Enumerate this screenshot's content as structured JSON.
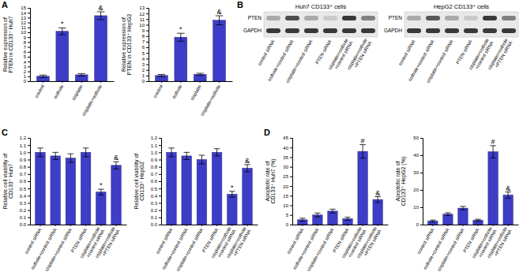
{
  "chart_data": [
    {
      "type": "bar",
      "ylabel": "Relative expression of\nPTEN in CD133⁺ Huh7",
      "categories": [
        "control",
        "osthole",
        "cisplatin",
        "cisplatin+osthole"
      ],
      "values": [
        1,
        10.2,
        1.3,
        13.4
      ],
      "errors": [
        0.25,
        0.7,
        0.25,
        0.8
      ],
      "annotations": [
        null,
        "*",
        null,
        "&"
      ],
      "color": "#3d3dc8",
      "ylim": [
        0,
        15
      ],
      "yticks": [
        0,
        1,
        2,
        3,
        4,
        5,
        6,
        7,
        8,
        9,
        10,
        11,
        12,
        13,
        14,
        15
      ]
    },
    {
      "type": "bar",
      "ylabel": "Relative expression of\nPTEN in CD133⁺ HepG2",
      "categories": [
        "control",
        "osthole",
        "cisplatin",
        "cisplatin+osthole"
      ],
      "values": [
        1,
        7.8,
        1.2,
        10.8
      ],
      "errors": [
        0.2,
        0.7,
        0.2,
        0.8
      ],
      "annotations": [
        null,
        "*",
        null,
        "&"
      ],
      "color": "#3d3dc8",
      "ylim": [
        0,
        13
      ],
      "yticks": [
        0,
        1,
        2,
        3,
        4,
        5,
        6,
        7,
        8,
        9,
        10,
        11,
        12,
        13
      ]
    },
    {
      "type": "bar",
      "ylabel": "Relative cell viability of\nCD133⁺ Huh7",
      "categories": [
        "control siRNA",
        "osthole+control siRNA",
        "cisplatin+control siRNA",
        "PTEN siRNA",
        "cisplatin+osthole\n+control siRNA",
        "cisplatin+osthole\n+PTEN siRNA"
      ],
      "values": [
        1.0,
        0.95,
        0.92,
        1.0,
        0.45,
        0.82
      ],
      "errors": [
        0.06,
        0.05,
        0.06,
        0.06,
        0.04,
        0.05
      ],
      "annotations": [
        null,
        null,
        null,
        null,
        "*",
        "&"
      ],
      "color": "#3d3dc8",
      "ylim": [
        0,
        1.2
      ],
      "yticks": [
        {
          "value": 0,
          "label": "0.0"
        },
        0.1,
        0.2,
        0.3,
        0.4,
        0.5,
        0.6,
        0.7,
        0.8,
        0.9,
        {
          "value": 1,
          "label": "1.0"
        },
        1.1,
        1.2
      ]
    },
    {
      "type": "bar",
      "ylabel": "Relative cell viability of\nCD133⁺ HepG2",
      "categories": [
        "control siRNA",
        "osthole+control siRNA",
        "cisplatin+control siRNA",
        "PTEN siRNA",
        "cisplatin+osthole\n+control siRNA",
        "cisplatin+osthole\n+PTEN siRNA"
      ],
      "values": [
        1.0,
        0.95,
        0.9,
        1.0,
        0.42,
        0.78
      ],
      "errors": [
        0.06,
        0.05,
        0.06,
        0.05,
        0.04,
        0.05
      ],
      "annotations": [
        null,
        null,
        null,
        null,
        "*",
        "&"
      ],
      "color": "#3d3dc8",
      "ylim": [
        0,
        1.2
      ],
      "yticks": [
        {
          "value": 0,
          "label": "0.0"
        },
        0.1,
        0.2,
        0.3,
        0.4,
        0.5,
        0.6,
        0.7,
        0.8,
        0.9,
        {
          "value": 1,
          "label": "1.0"
        },
        1.1,
        1.2
      ]
    },
    {
      "type": "bar",
      "ylabel": "Apoptotic rate of\nCD133⁺ Huh7 (%)",
      "categories": [
        "control siRNA",
        "osthole+control siRNA",
        "cisplatin+control siRNA",
        "PTEN siRNA",
        "cisplatin+osthole\n+control siRNA",
        "cisplatin+osthole\n+PTEN siRNA"
      ],
      "values": [
        2.5,
        5,
        7,
        3,
        38,
        13
      ],
      "errors": [
        0.8,
        1,
        1,
        0.8,
        3.5,
        1.5
      ],
      "annotations": [
        null,
        null,
        null,
        null,
        "#",
        "&"
      ],
      "color": "#3d3dc8",
      "ylim": [
        0,
        45
      ],
      "yticks": [
        0,
        5,
        10,
        15,
        20,
        25,
        30,
        35,
        40,
        45
      ]
    },
    {
      "type": "bar",
      "ylabel": "Apoptotic rate of\nCD133⁺ HepG2 (%)",
      "categories": [
        "control siRNA",
        "osthole+control siRNA",
        "cisplatin+control siRNA",
        "PTEN siRNA",
        "cisplatin+osthole\n+control siRNA",
        "cisplatin+osthole\n+PTEN siRNA"
      ],
      "values": [
        2,
        6,
        9.5,
        2.5,
        42,
        17
      ],
      "errors": [
        0.6,
        0.8,
        1,
        0.6,
        3.5,
        1.8
      ],
      "annotations": [
        null,
        null,
        null,
        null,
        "#",
        "&"
      ],
      "color": "#3d3dc8",
      "ylim": [
        0,
        50
      ],
      "yticks": [
        0,
        10,
        20,
        30,
        40,
        50
      ]
    }
  ],
  "panel_labels": [
    "A",
    "B",
    "C",
    "D"
  ],
  "blots": [
    {
      "title": "Huh7 CD133⁺ cells",
      "rows": [
        "PTEN",
        "GAPDH"
      ],
      "lanes": [
        "control siRNA",
        "osthole+control siRNA",
        "cisplatin+control siRNA",
        "PTEN siRNA",
        "cisplatin+osthole\n+control siRNA",
        "cisplatin+osthole\n+PTEN siRNA"
      ],
      "band_intensity": [
        [
          0.3,
          0.75,
          0.3,
          0.15,
          0.85,
          0.5
        ],
        [
          0.85,
          0.85,
          0.85,
          0.85,
          0.85,
          0.85
        ]
      ]
    },
    {
      "title": "HepG2 CD133⁺ cells",
      "rows": [
        "PTEN",
        "GAPDH"
      ],
      "lanes": [
        "control siRNA",
        "osthole+control siRNA",
        "cisplatin+control siRNA",
        "PTEN siRNA",
        "cisplatin+osthole\n+control siRNA",
        "cisplatin+osthole\n+PTEN siRNA"
      ],
      "band_intensity": [
        [
          0.3,
          0.7,
          0.3,
          0.15,
          0.85,
          0.5
        ],
        [
          0.85,
          0.85,
          0.85,
          0.85,
          0.85,
          0.85
        ]
      ]
    }
  ]
}
